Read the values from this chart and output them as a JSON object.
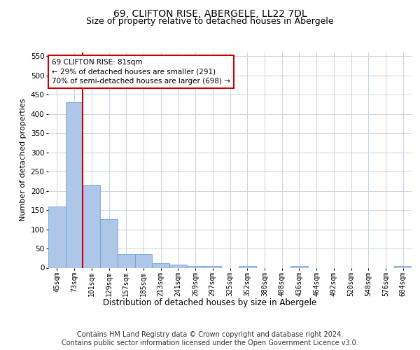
{
  "title1": "69, CLIFTON RISE, ABERGELE, LL22 7DL",
  "title2": "Size of property relative to detached houses in Abergele",
  "xlabel": "Distribution of detached houses by size in Abergele",
  "ylabel": "Number of detached properties",
  "categories": [
    "45sqm",
    "73sqm",
    "101sqm",
    "129sqm",
    "157sqm",
    "185sqm",
    "213sqm",
    "241sqm",
    "269sqm",
    "297sqm",
    "325sqm",
    "352sqm",
    "380sqm",
    "408sqm",
    "436sqm",
    "464sqm",
    "492sqm",
    "520sqm",
    "548sqm",
    "576sqm",
    "604sqm"
  ],
  "values": [
    160,
    430,
    215,
    127,
    35,
    35,
    12,
    9,
    5,
    4,
    0,
    4,
    0,
    0,
    5,
    0,
    0,
    0,
    0,
    0,
    5
  ],
  "bar_color": "#aec6e8",
  "bar_edge_color": "#5b9bd5",
  "vline_color": "#cc0000",
  "vline_x": 1.5,
  "annotation_line1": "69 CLIFTON RISE: 81sqm",
  "annotation_line2": "← 29% of detached houses are smaller (291)",
  "annotation_line3": "70% of semi-detached houses are larger (698) →",
  "annotation_box_color": "#cc0000",
  "ylim": [
    0,
    560
  ],
  "yticks": [
    0,
    50,
    100,
    150,
    200,
    250,
    300,
    350,
    400,
    450,
    500,
    550
  ],
  "footer_text": "Contains HM Land Registry data © Crown copyright and database right 2024.\nContains public sector information licensed under the Open Government Licence v3.0.",
  "bg_color": "#ffffff",
  "grid_color": "#c8d4e3",
  "title1_fontsize": 10,
  "title2_fontsize": 9,
  "xlabel_fontsize": 8.5,
  "ylabel_fontsize": 8,
  "tick_fontsize": 7,
  "footer_fontsize": 7,
  "ann_fontsize": 7.5
}
